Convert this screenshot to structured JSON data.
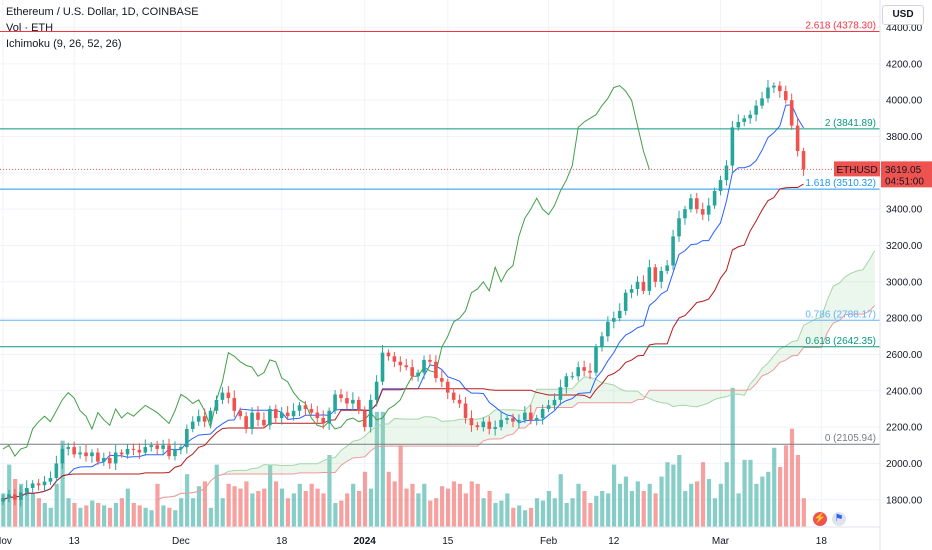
{
  "legend": {
    "symbol": "Ethereum / U.S. Dollar, 1D, COINBASE",
    "volume": "Vol · ETH",
    "ichimoku": "Ichimoku (9, 26, 52, 26)"
  },
  "currency_button": "USD",
  "colors": {
    "up": "#26a69a",
    "down": "#ef5350",
    "tenkan": "#2962ff",
    "kijun": "#b71c1c",
    "chikou": "#43a047",
    "fib_red": "#f23645",
    "fib_teal": "#089981",
    "fib_blue": "#2196f3",
    "fib_light": "#64b5f6",
    "fib_gray": "#787b86"
  },
  "chart_data": {
    "type": "candlestick",
    "ylim": [
      1650,
      4480
    ],
    "y_ticks": [
      "1800.00",
      "2000.00",
      "2200.00",
      "2400.00",
      "2600.00",
      "2800.00",
      "3000.00",
      "3200.00",
      "3400.00",
      "3600.00",
      "3800.00",
      "4000.00",
      "4200.00",
      "4400.00"
    ],
    "x_ticks": [
      {
        "label": "Nov",
        "idx": 0
      },
      {
        "label": "13",
        "idx": 12
      },
      {
        "label": "Dec",
        "idx": 30
      },
      {
        "label": "18",
        "idx": 47
      },
      {
        "label": "2024",
        "idx": 61,
        "bold": true
      },
      {
        "label": "15",
        "idx": 75
      },
      {
        "label": "Feb",
        "idx": 92
      },
      {
        "label": "12",
        "idx": 103
      },
      {
        "label": "Mar",
        "idx": 121
      },
      {
        "label": "18",
        "idx": 138
      }
    ],
    "ohlc_close": [
      1810,
      1830,
      1800,
      1840,
      1865,
      1890,
      1880,
      1900,
      1920,
      2000,
      2080,
      2090,
      2050,
      2060,
      2040,
      2060,
      2010,
      2030,
      2000,
      2060,
      2050,
      2080,
      2075,
      2060,
      2090,
      2100,
      2080,
      2100,
      2040,
      2080,
      2090,
      2190,
      2230,
      2260,
      2230,
      2290,
      2350,
      2390,
      2360,
      2290,
      2260,
      2190,
      2280,
      2240,
      2210,
      2300,
      2250,
      2280,
      2260,
      2290,
      2320,
      2300,
      2280,
      2250,
      2220,
      2290,
      2380,
      2360,
      2330,
      2350,
      2290,
      2200,
      2350,
      2450,
      2610,
      2590,
      2560,
      2540,
      2530,
      2480,
      2500,
      2570,
      2560,
      2470,
      2450,
      2390,
      2350,
      2330,
      2250,
      2210,
      2200,
      2230,
      2190,
      2200,
      2240,
      2250,
      2230,
      2240,
      2280,
      2240,
      2250,
      2300,
      2320,
      2350,
      2420,
      2480,
      2480,
      2530,
      2510,
      2500,
      2640,
      2700,
      2780,
      2800,
      2840,
      2940,
      2960,
      3000,
      2950,
      3080,
      3000,
      3060,
      3090,
      3250,
      3350,
      3400,
      3460,
      3400,
      3370,
      3420,
      3500,
      3560,
      3640,
      3850,
      3880,
      3900,
      3920,
      3970,
      4010,
      4070,
      4080,
      4050,
      4000,
      3860,
      3720,
      3619
    ],
    "volume": [
      70,
      130,
      100,
      90,
      80,
      70,
      60,
      50,
      40,
      90,
      180,
      60,
      50,
      40,
      45,
      55,
      50,
      45,
      40,
      50,
      60,
      80,
      50,
      45,
      40,
      35,
      90,
      45,
      40,
      35,
      60,
      110,
      60,
      85,
      95,
      40,
      130,
      60,
      90,
      85,
      80,
      95,
      70,
      75,
      80,
      130,
      95,
      80,
      60,
      70,
      90,
      75,
      90,
      80,
      70,
      150,
      50,
      55,
      70,
      90,
      75,
      115,
      80,
      240,
      240,
      115,
      95,
      170,
      80,
      90,
      70,
      90,
      55,
      60,
      85,
      80,
      95,
      90,
      70,
      95,
      90,
      60,
      75,
      50,
      55,
      70,
      40,
      45,
      35,
      40,
      60,
      55,
      75,
      60,
      110,
      50,
      60,
      90,
      75,
      50,
      65,
      75,
      70,
      130,
      90,
      105,
      75,
      95,
      75,
      90,
      70,
      105,
      135,
      130,
      150,
      75,
      90,
      95,
      135,
      100,
      60,
      90,
      135,
      290,
      70,
      140,
      140,
      90,
      105,
      115,
      165,
      125,
      170,
      205,
      150,
      60
    ],
    "fib_levels": [
      {
        "label": "2.618 (4378.30)",
        "value": 4378.3,
        "color_key": "fib_red"
      },
      {
        "label": "2 (3841.89)",
        "value": 3841.89,
        "color_key": "fib_teal"
      },
      {
        "label": "1.618 (3510.32)",
        "value": 3510.32,
        "color_key": "fib_blue"
      },
      {
        "label": "0.786 (2788.17)",
        "value": 2788.17,
        "color_key": "fib_light"
      },
      {
        "label": "0.618 (2642.35)",
        "value": 2642.35,
        "color_key": "fib_teal"
      },
      {
        "label": "0 (2105.94)",
        "value": 2105.94,
        "color_key": "fib_gray"
      }
    ],
    "price_tag": {
      "symbol": "ETHUSD",
      "price": "3619.05",
      "countdown": "04:51:00",
      "value": 3619.05
    }
  }
}
